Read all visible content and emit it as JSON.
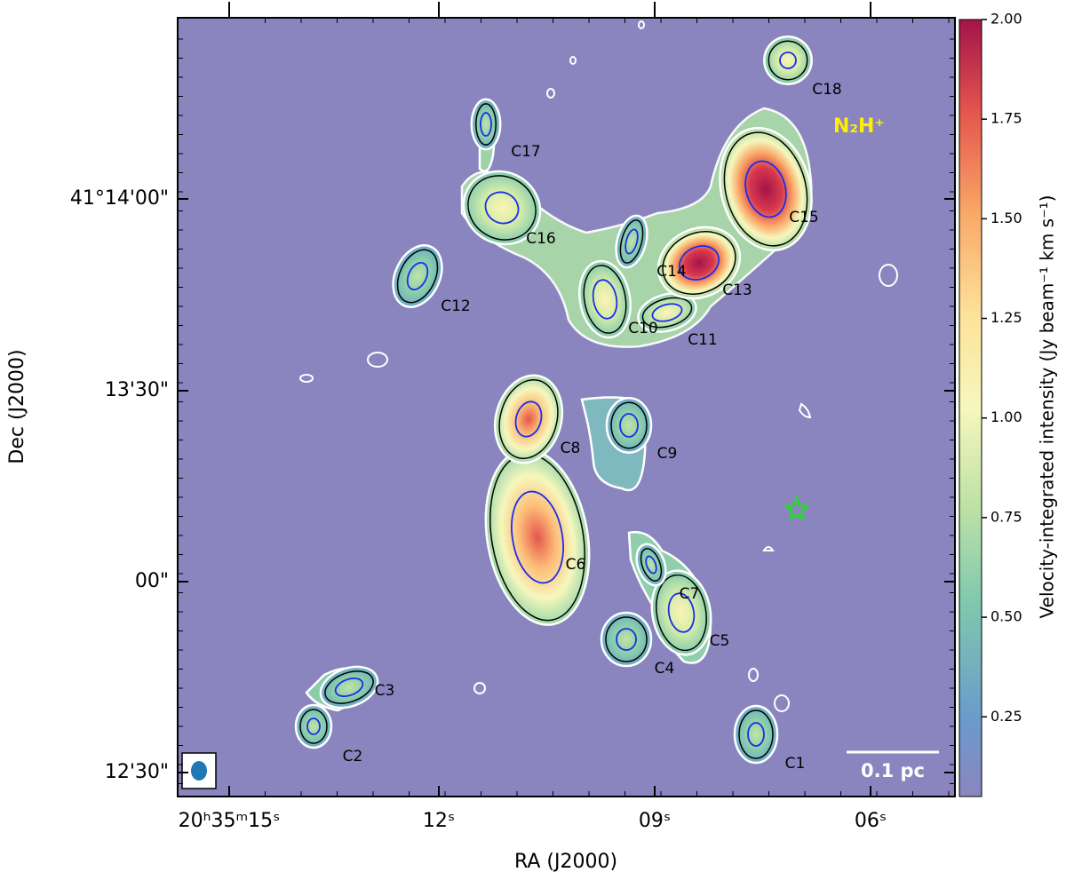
{
  "figure": {
    "species_label": "N₂H⁺",
    "scale_bar": "0.1 pc",
    "x_axis": {
      "label": "RA (J2000)",
      "ticks": [
        "20ʰ35ᵐ15ˢ",
        "12ˢ",
        "09ˢ",
        "06ˢ"
      ]
    },
    "y_axis": {
      "label": "Dec (J2000)",
      "ticks": [
        "41°14'00\"",
        "13'30\"",
        "00\"",
        "12'30\""
      ]
    },
    "colorbar": {
      "label": "Velocity-integrated intensity (Jy beam⁻¹ km s⁻¹)",
      "lim": [
        0.05,
        2
      ],
      "ticks": [
        0.25,
        {
          "value": 0.5,
          "label": "0.50"
        },
        0.75,
        {
          "value": 1,
          "label": "1.00"
        },
        1.25,
        {
          "value": 1.5,
          "label": "1.50"
        },
        1.75,
        {
          "value": 2,
          "label": "2.00"
        }
      ]
    },
    "cores": [
      "C1",
      "C2",
      "C3",
      "C4",
      "C5",
      "C6",
      "C7",
      "C8",
      "C9",
      "C10",
      "C11",
      "C12",
      "C13",
      "C14",
      "C15",
      "C16",
      "C17",
      "C18"
    ]
  }
}
